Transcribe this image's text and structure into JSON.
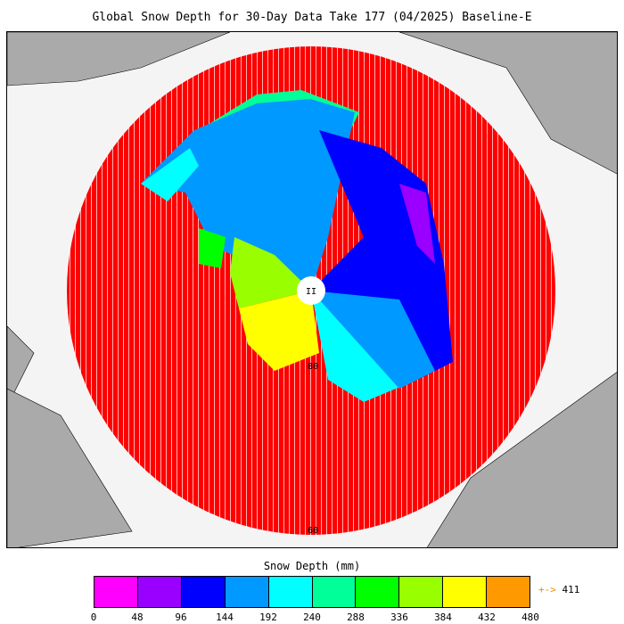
{
  "title": "Global Snow Depth for 30-Day Data Take 177 (04/2025) Baseline-E",
  "map": {
    "projection": "north-polar-stereographic",
    "latitude_labels": [
      "80",
      "60"
    ],
    "pole_label": "II",
    "colors": {
      "land": "#aaaaaa",
      "ocean": "#f4f4f4",
      "no_data_snow": "#ff0000"
    }
  },
  "colorbar": {
    "title": "Snow Depth (mm)",
    "ticks": [
      "0",
      "48",
      "96",
      "144",
      "192",
      "240",
      "288",
      "336",
      "384",
      "432",
      "480"
    ],
    "colors": [
      "#ff00ff",
      "#9900ff",
      "#0000ff",
      "#0099ff",
      "#00ffff",
      "#00ff99",
      "#00ff00",
      "#99ff00",
      "#ffff00",
      "#ff9900"
    ],
    "max_marker": "+->",
    "max_value": "411"
  }
}
